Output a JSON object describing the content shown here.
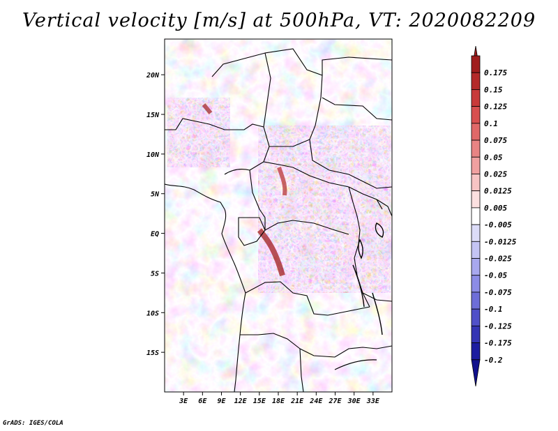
{
  "title": "Vertical velocity [m/s] at 500hPa, VT: 2020082209",
  "footer": "GrADS: IGES/COLA",
  "map": {
    "lon_range": [
      0,
      36
    ],
    "lat_range": [
      -20,
      24.5
    ],
    "x_ticks": [
      "3E",
      "6E",
      "9E",
      "12E",
      "15E",
      "18E",
      "21E",
      "24E",
      "27E",
      "30E",
      "33E"
    ],
    "x_tick_values": [
      3,
      6,
      9,
      12,
      15,
      18,
      21,
      24,
      27,
      30,
      33
    ],
    "y_ticks": [
      "15S",
      "10S",
      "5S",
      "EQ",
      "5N",
      "10N",
      "15N",
      "20N"
    ],
    "y_tick_values": [
      -15,
      -10,
      -5,
      0,
      5,
      10,
      15,
      20
    ]
  },
  "colorbar": {
    "labels": [
      "0.175",
      "0.15",
      "0.125",
      "0.1",
      "0.075",
      "0.05",
      "0.025",
      "0.0125",
      "0.005",
      "-0.005",
      "-0.0125",
      "-0.025",
      "-0.05",
      "-0.075",
      "-0.1",
      "-0.125",
      "-0.175",
      "-0.2"
    ],
    "colors": [
      "#a01e1e",
      "#b42a2a",
      "#c83a3a",
      "#d85050",
      "#e06868",
      "#e88484",
      "#f0a0a0",
      "#f7c4c4",
      "#fbe0e0",
      "#ffffff",
      "#dcdcf8",
      "#c4c4f4",
      "#a8a8ee",
      "#8c8ce6",
      "#6e6ed8",
      "#5050c8",
      "#3434b4",
      "#1c1ca0",
      "#10108c"
    ]
  }
}
